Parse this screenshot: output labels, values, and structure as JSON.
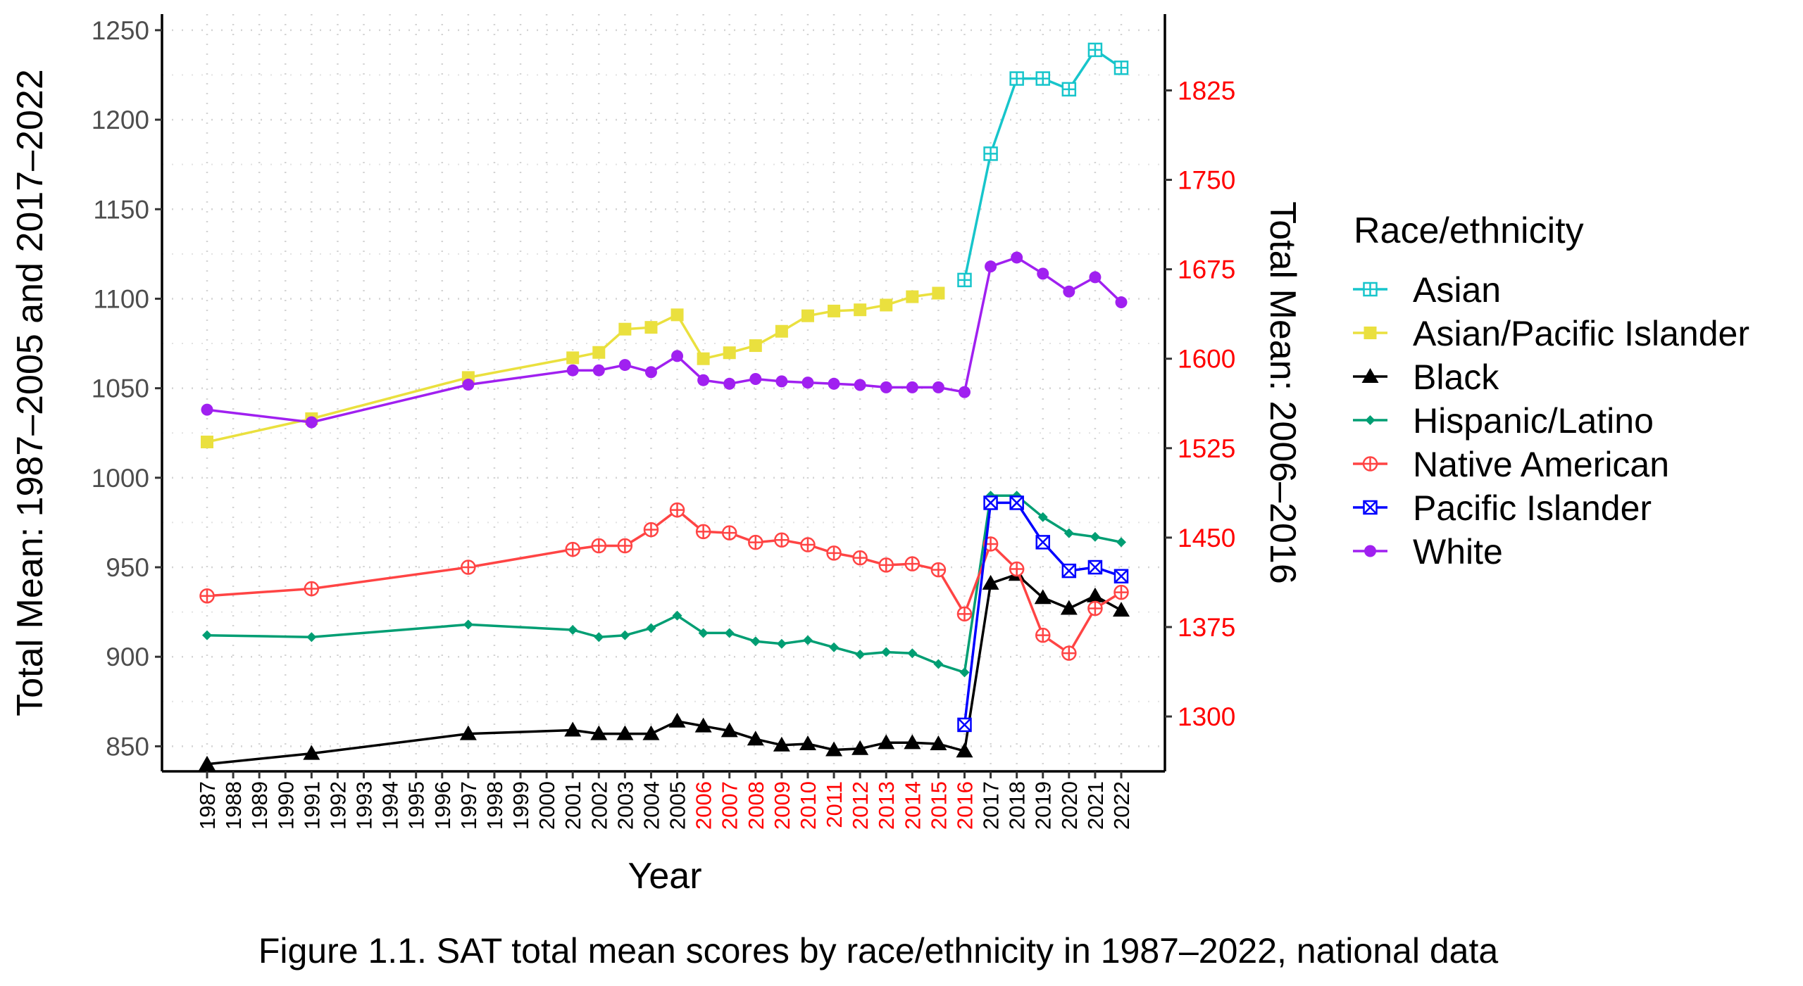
{
  "chart_data": {
    "type": "line",
    "caption": "Figure 1.1. SAT total mean scores by race/ethnicity in 1987–2022, national data",
    "xlabel": "Year",
    "ylabel_left": "Total Mean: 1987–2005 and 2017–2022",
    "ylabel_right": "Total Mean: 2006–2016",
    "x_ticks": [
      1987,
      1988,
      1989,
      1990,
      1991,
      1992,
      1993,
      1994,
      1995,
      1996,
      1997,
      1998,
      1999,
      2000,
      2001,
      2002,
      2003,
      2004,
      2005,
      2006,
      2007,
      2008,
      2009,
      2010,
      2011,
      2012,
      2013,
      2014,
      2015,
      2016,
      2017,
      2018,
      2019,
      2020,
      2021,
      2022
    ],
    "secondary_axis_years": [
      2006,
      2016
    ],
    "secondary_tick_color": "#FF0000",
    "ylim_left": [
      836,
      1259
    ],
    "yticks_left": [
      850,
      900,
      950,
      1000,
      1050,
      1100,
      1150,
      1200,
      1250
    ],
    "ylim_right": [
      1254,
      1889
    ],
    "yticks_right": [
      1300,
      1375,
      1450,
      1525,
      1600,
      1675,
      1750,
      1825
    ],
    "grid": "dotted, major and minor",
    "legend": {
      "title": "Race/ethnicity",
      "placement": "right"
    },
    "series": [
      {
        "name": "Asian",
        "color": "#17C5CB",
        "marker": "square-plus-open",
        "points": [
          [
            2016,
            1666
          ],
          [
            2017,
            1181
          ],
          [
            2018,
            1223
          ],
          [
            2019,
            1223
          ],
          [
            2020,
            1217
          ],
          [
            2021,
            1239
          ],
          [
            2022,
            1229
          ]
        ]
      },
      {
        "name": "Asian/Pacific Islander",
        "color": "#EAE03E",
        "marker": "square-filled",
        "points": [
          [
            1987,
            1020
          ],
          [
            1991,
            1033
          ],
          [
            1997,
            1056
          ],
          [
            2001,
            1067
          ],
          [
            2002,
            1070
          ],
          [
            2003,
            1083
          ],
          [
            2004,
            1084
          ],
          [
            2005,
            1091
          ],
          [
            2006,
            1600
          ],
          [
            2007,
            1605
          ],
          [
            2008,
            1611
          ],
          [
            2009,
            1623
          ],
          [
            2010,
            1636
          ],
          [
            2011,
            1640
          ],
          [
            2012,
            1641
          ],
          [
            2013,
            1645
          ],
          [
            2014,
            1652
          ],
          [
            2015,
            1655
          ]
        ]
      },
      {
        "name": "Black",
        "color": "#000000",
        "marker": "triangle-filled",
        "points": [
          [
            1987,
            840
          ],
          [
            1991,
            846
          ],
          [
            1997,
            857
          ],
          [
            2001,
            859
          ],
          [
            2002,
            857
          ],
          [
            2003,
            857
          ],
          [
            2004,
            857
          ],
          [
            2005,
            864
          ],
          [
            2006,
            1292
          ],
          [
            2007,
            1288
          ],
          [
            2008,
            1281
          ],
          [
            2009,
            1276
          ],
          [
            2010,
            1277
          ],
          [
            2011,
            1272
          ],
          [
            2012,
            1273
          ],
          [
            2013,
            1278
          ],
          [
            2014,
            1278
          ],
          [
            2015,
            1277
          ],
          [
            2016,
            1271
          ],
          [
            2017,
            941
          ],
          [
            2018,
            946
          ],
          [
            2019,
            933
          ],
          [
            2020,
            927
          ],
          [
            2021,
            934
          ],
          [
            2022,
            926
          ]
        ]
      },
      {
        "name": "Hispanic/Latino",
        "color": "#009E73",
        "marker": "diamond-filled",
        "points": [
          [
            1987,
            912
          ],
          [
            1991,
            911
          ],
          [
            1997,
            918
          ],
          [
            2001,
            915
          ],
          [
            2002,
            911
          ],
          [
            2003,
            912
          ],
          [
            2004,
            916
          ],
          [
            2005,
            923
          ],
          [
            2006,
            1370
          ],
          [
            2007,
            1370
          ],
          [
            2008,
            1363
          ],
          [
            2009,
            1361
          ],
          [
            2010,
            1364
          ],
          [
            2011,
            1358
          ],
          [
            2012,
            1352
          ],
          [
            2013,
            1354
          ],
          [
            2014,
            1353
          ],
          [
            2015,
            1344
          ],
          [
            2016,
            1337
          ],
          [
            2017,
            990
          ],
          [
            2018,
            990
          ],
          [
            2019,
            978
          ],
          [
            2020,
            969
          ],
          [
            2021,
            967
          ],
          [
            2022,
            964
          ]
        ]
      },
      {
        "name": "Native American",
        "color": "#FF4444",
        "marker": "circle-plus-open",
        "points": [
          [
            1987,
            934
          ],
          [
            1991,
            938
          ],
          [
            1997,
            950
          ],
          [
            2001,
            960
          ],
          [
            2002,
            962
          ],
          [
            2003,
            962
          ],
          [
            2004,
            971
          ],
          [
            2005,
            982
          ],
          [
            2006,
            1455
          ],
          [
            2007,
            1454
          ],
          [
            2008,
            1446
          ],
          [
            2009,
            1448
          ],
          [
            2010,
            1444
          ],
          [
            2011,
            1437
          ],
          [
            2012,
            1433
          ],
          [
            2013,
            1427
          ],
          [
            2014,
            1428
          ],
          [
            2015,
            1423
          ],
          [
            2016,
            1386
          ],
          [
            2017,
            963
          ],
          [
            2018,
            949
          ],
          [
            2019,
            912
          ],
          [
            2020,
            902
          ],
          [
            2021,
            927
          ],
          [
            2022,
            936
          ]
        ]
      },
      {
        "name": "Pacific Islander",
        "color": "#0000FF",
        "marker": "square-x-open",
        "points": [
          [
            2016,
            1293
          ],
          [
            2017,
            986
          ],
          [
            2018,
            986
          ],
          [
            2019,
            964
          ],
          [
            2020,
            948
          ],
          [
            2021,
            950
          ],
          [
            2022,
            945
          ]
        ]
      },
      {
        "name": "White",
        "color": "#A020F0",
        "marker": "circle-filled",
        "points": [
          [
            1987,
            1038
          ],
          [
            1991,
            1031
          ],
          [
            1997,
            1052
          ],
          [
            2001,
            1060
          ],
          [
            2002,
            1060
          ],
          [
            2003,
            1063
          ],
          [
            2004,
            1059
          ],
          [
            2005,
            1068
          ],
          [
            2006,
            1582
          ],
          [
            2007,
            1579
          ],
          [
            2008,
            1583
          ],
          [
            2009,
            1581
          ],
          [
            2010,
            1580
          ],
          [
            2011,
            1579
          ],
          [
            2012,
            1578
          ],
          [
            2013,
            1576
          ],
          [
            2014,
            1576
          ],
          [
            2015,
            1576
          ],
          [
            2016,
            1572
          ],
          [
            2017,
            1118
          ],
          [
            2018,
            1123
          ],
          [
            2019,
            1114
          ],
          [
            2020,
            1104
          ],
          [
            2021,
            1112
          ],
          [
            2022,
            1098
          ]
        ]
      }
    ]
  }
}
